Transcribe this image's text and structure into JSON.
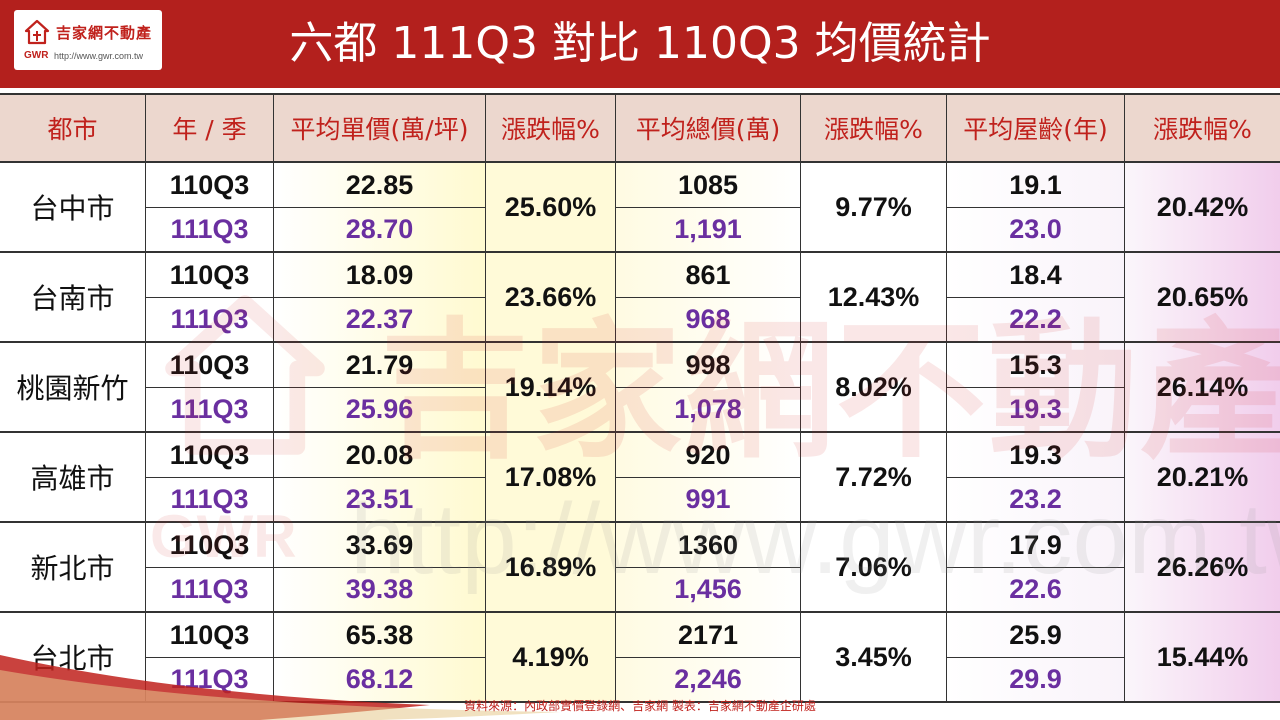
{
  "header": {
    "title": "六都  111Q3 對比 110Q3 均價統計",
    "logo": {
      "name": "吉家網不動產",
      "gwr": "GWR",
      "url": "http://www.gwr.com.tw"
    },
    "bg_color": "#b3201d"
  },
  "table": {
    "headers": [
      "都市",
      "年 / 季",
      "平均單價(萬/坪)",
      "漲跌幅%",
      "平均總價(萬)",
      "漲跌幅%",
      "平均屋齡(年)",
      "漲跌幅%"
    ],
    "rows": [
      {
        "city": "台中市",
        "prev_label": "110Q3",
        "curr_label": "111Q3",
        "unit_prev": "22.85",
        "unit_curr": "28.70",
        "unit_change": "25.60%",
        "total_prev": "1085",
        "total_curr": "1,191",
        "total_change": "9.77%",
        "age_prev": "19.1",
        "age_curr": "23.0",
        "age_change": "20.42%"
      },
      {
        "city": "台南市",
        "prev_label": "110Q3",
        "curr_label": "111Q3",
        "unit_prev": "18.09",
        "unit_curr": "22.37",
        "unit_change": "23.66%",
        "total_prev": "861",
        "total_curr": "968",
        "total_change": "12.43%",
        "age_prev": "18.4",
        "age_curr": "22.2",
        "age_change": "20.65%"
      },
      {
        "city": "桃園新竹",
        "prev_label": "110Q3",
        "curr_label": "111Q3",
        "unit_prev": "21.79",
        "unit_curr": "25.96",
        "unit_change": "19.14%",
        "total_prev": "998",
        "total_curr": "1,078",
        "total_change": "8.02%",
        "age_prev": "15.3",
        "age_curr": "19.3",
        "age_change": "26.14%"
      },
      {
        "city": "高雄市",
        "prev_label": "110Q3",
        "curr_label": "111Q3",
        "unit_prev": "20.08",
        "unit_curr": "23.51",
        "unit_change": "17.08%",
        "total_prev": "920",
        "total_curr": "991",
        "total_change": "7.72%",
        "age_prev": "19.3",
        "age_curr": "23.2",
        "age_change": "20.21%"
      },
      {
        "city": "新北市",
        "prev_label": "110Q3",
        "curr_label": "111Q3",
        "unit_prev": "33.69",
        "unit_curr": "39.38",
        "unit_change": "16.89%",
        "total_prev": "1360",
        "total_curr": "1,456",
        "total_change": "7.06%",
        "age_prev": "17.9",
        "age_curr": "22.6",
        "age_change": "26.26%"
      },
      {
        "city": "台北市",
        "prev_label": "110Q3",
        "curr_label": "111Q3",
        "unit_prev": "65.38",
        "unit_curr": "68.12",
        "unit_change": "4.19%",
        "total_prev": "2171",
        "total_curr": "2,246",
        "total_change": "3.45%",
        "age_prev": "25.9",
        "age_curr": "29.9",
        "age_change": "15.44%"
      }
    ]
  },
  "watermark": {
    "text": "吉家網不動產",
    "url": "http://www.gwr.com.tw",
    "gwr": "GWR"
  },
  "footer": {
    "source": "資料來源：內政部實價登錄網、吉家網   製表：吉家網不動產企研處"
  },
  "colors": {
    "accent": "#c0211c",
    "current_value": "#6a2fa0",
    "header_cell": "#ecd7ce"
  }
}
